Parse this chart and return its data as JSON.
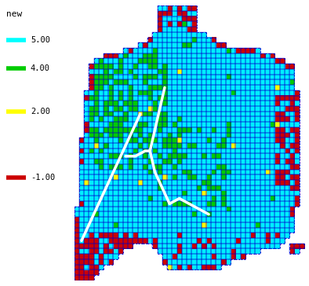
{
  "title": "new",
  "legend_entries": [
    {
      "label": "5.00",
      "color": "#00FFFF"
    },
    {
      "label": "4.00",
      "color": "#00CC00"
    },
    {
      "label": "2.00",
      "color": "#FFFF00"
    },
    {
      "label": "-1.00",
      "color": "#CC0000"
    }
  ],
  "background_color": "#FFFFFF",
  "colors": {
    "cyan": "#00EEFF",
    "green": "#00CC00",
    "yellow": "#FFFF00",
    "red": "#CC0000",
    "white": "#FFFFFF",
    "border": "#0000CC"
  },
  "cell_size": 6,
  "cols": 48,
  "rows": 52
}
